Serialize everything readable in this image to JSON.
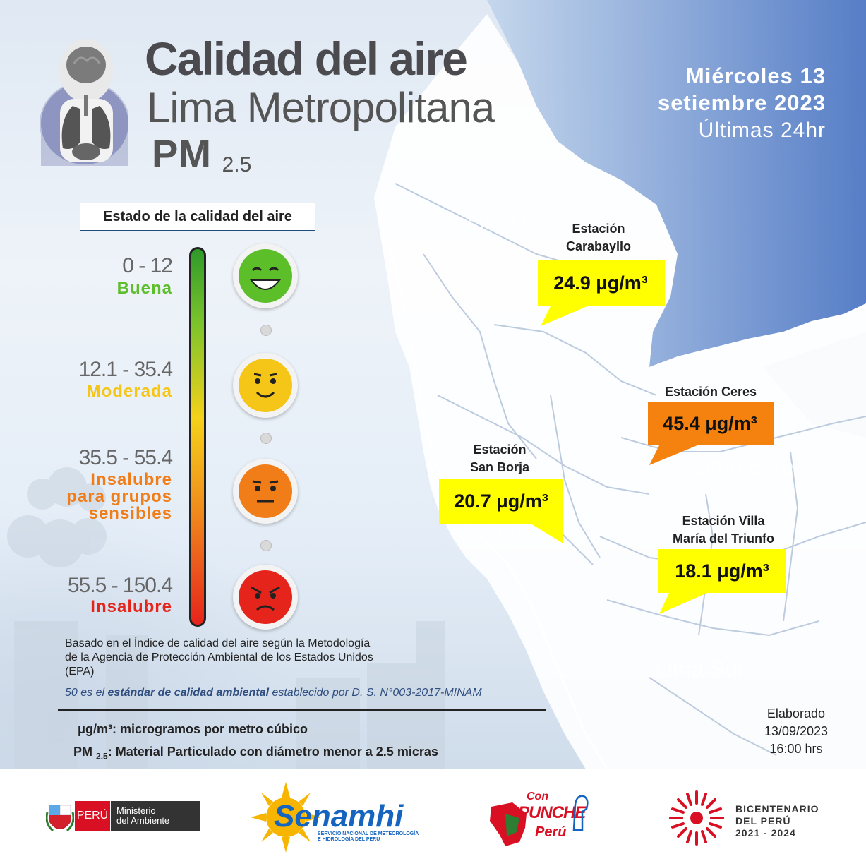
{
  "header": {
    "title_line1": "Calidad del aire",
    "title_line2": "Lima Metropolitana",
    "title_pm": "PM",
    "title_pm_sub": "2.5",
    "date_line1": "Miércoles 13",
    "date_line2": "setiembre 2023",
    "date_line3": "Últimas 24hr"
  },
  "legend": {
    "box_title": "Estado de la calidad del aire",
    "levels": [
      {
        "range": "0 - 12",
        "label": "Buena",
        "color": "#5cbf2a",
        "face": "happy-face-icon"
      },
      {
        "range": "12.1 - 35.4",
        "label": "Moderada",
        "color": "#f5c518",
        "face": "smile-face-icon"
      },
      {
        "range": "35.5 - 55.4",
        "label": "Insalubre para grupos sensibles",
        "label_lines": [
          "Insalubre",
          "para grupos",
          "sensibles"
        ],
        "color": "#f07d18",
        "face": "neutral-face-icon"
      },
      {
        "range": "55.5 - 150.4",
        "label": "Insalubre",
        "color": "#e5251b",
        "face": "angry-face-icon"
      }
    ]
  },
  "stations": [
    {
      "name_lines": [
        "Estación",
        "Carabayllo"
      ],
      "value": "24.9 μg/m³",
      "color": "#ffff00"
    },
    {
      "name_lines": [
        "Estación Ceres"
      ],
      "value": "45.4 μg/m³",
      "color": "#f5820f"
    },
    {
      "name_lines": [
        "Estación",
        "San Borja"
      ],
      "value": "20.7 μg/m³",
      "color": "#ffff00"
    },
    {
      "name_lines": [
        "Estación Villa",
        "María del Triunfo"
      ],
      "value": "18.1 μg/m³",
      "color": "#ffff00"
    }
  ],
  "zones": [
    "Lima Norte",
    "Lima Este",
    "Centro",
    "Lima Sur"
  ],
  "notes": {
    "methodology_lines": [
      "Basado en el Índice de calidad del aire según la Metodología",
      "de la Agencia de Protección Ambiental de los Estados Unidos",
      "(EPA)"
    ],
    "standard_prefix": "50 es el ",
    "standard_bold": "estándar de calidad ambiental",
    "standard_suffix": " establecido por D. S. N°003-2017-MINAM",
    "def_ugm3": "μg/m³: microgramos por metro cúbico",
    "def_pm_prefix": "PM",
    "def_pm_sub": "2.5",
    "def_pm_suffix": ": Material Particulado con diámetro menor a 2.5 micras",
    "elaborado": [
      "Elaborado",
      "13/09/2023",
      "16:00 hrs"
    ]
  },
  "footer": {
    "minam_country": "PERÚ",
    "minam_lines": [
      "Ministerio",
      "del Ambiente"
    ],
    "senamhi_name": "Senamhi",
    "senamhi_sub_lines": [
      "SERVICIO NACIONAL DE METEOROLOGÍA",
      "E HIDROLOGÍA DEL PERÚ"
    ],
    "punche_lines": [
      "Con",
      "PUNCHE",
      "Perú"
    ],
    "bicentenario_lines": [
      "BICENTENARIO",
      "DEL PERÚ",
      "2021 - 2024"
    ]
  }
}
